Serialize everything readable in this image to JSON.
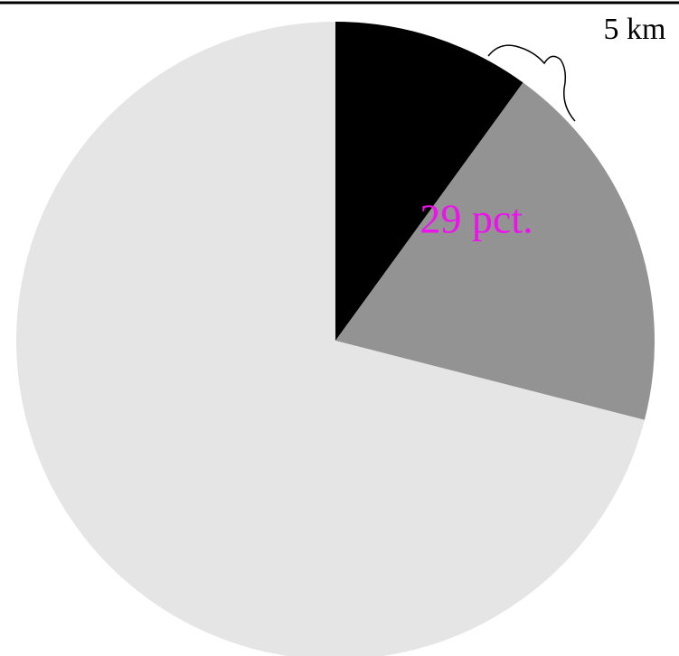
{
  "chart_data": {
    "type": "pie",
    "categories": [
      null,
      null,
      null
    ],
    "values": [
      10,
      19,
      71
    ],
    "colors": [
      "#000000",
      "#939393",
      "#e5e5e5"
    ],
    "start_angle": 0,
    "annotations": [
      "29 pct.",
      "5 km"
    ]
  }
}
